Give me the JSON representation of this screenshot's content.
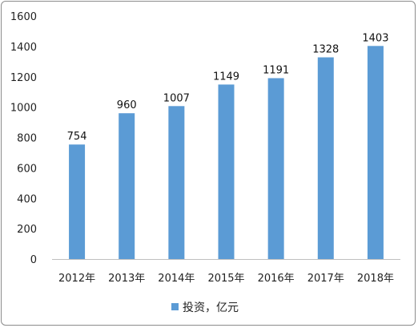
{
  "chart_data": {
    "type": "bar",
    "categories": [
      "2012年",
      "2013年",
      "2014年",
      "2015年",
      "2016年",
      "2017年",
      "2018年"
    ],
    "series": [
      {
        "name": "投资，亿元",
        "values": [
          754,
          960,
          1007,
          1149,
          1191,
          1328,
          1403
        ],
        "color": "#5b9bd5"
      }
    ],
    "ylim": [
      0,
      1600
    ],
    "yticks": [
      0,
      200,
      400,
      600,
      800,
      1000,
      1200,
      1400,
      1600
    ],
    "grid": false,
    "legend": "bottom",
    "data_labels": true
  }
}
